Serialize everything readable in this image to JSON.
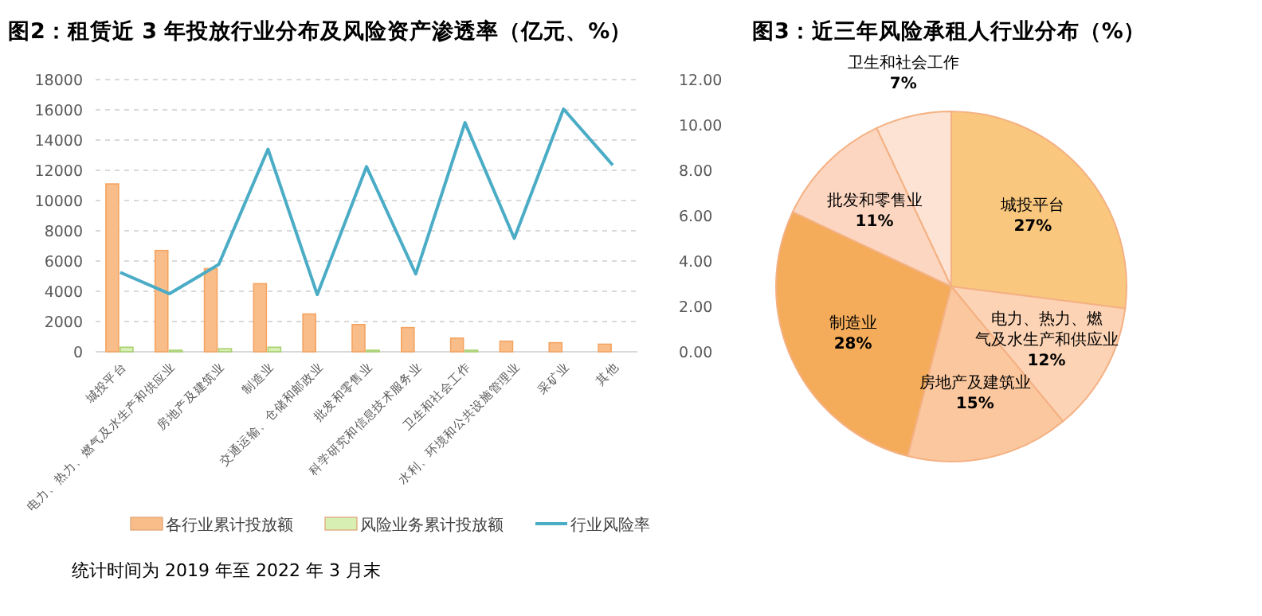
{
  "chart_data": [
    {
      "type": "bar",
      "title": "图2：租赁近 3 年投放行业分布及风险资产渗透率（亿元、%）",
      "categories": [
        "城投平台",
        "电力、热力、燃气及水生产和供应业",
        "房地产及建筑业",
        "制造业",
        "交通运输、仓储和邮政业",
        "批发和零售业",
        "科学研究和信息技术服务业",
        "卫生和社会工作",
        "水利、环境和公共设施管理业",
        "采矿业",
        "其他"
      ],
      "series": [
        {
          "name": "各行业累计投放额",
          "color": "#f9bd8a",
          "values": [
            11100,
            6700,
            5500,
            4500,
            2500,
            1800,
            1600,
            900,
            700,
            600,
            500
          ]
        },
        {
          "name": "风险业务累计投放额",
          "color": "#d8efb4",
          "values": [
            300,
            100,
            200,
            300,
            0,
            100,
            0,
            100,
            0,
            0,
            0
          ]
        },
        {
          "name": "行业风险率",
          "type": "line",
          "axis": "y2",
          "color": "#4bacc6",
          "values": [
            3.5,
            2.56,
            3.85,
            8.93,
            2.52,
            8.16,
            3.43,
            10.1,
            5.0,
            10.7,
            8.23
          ]
        }
      ],
      "ylim": [
        0,
        18000
      ],
      "yticks": [
        0,
        2000,
        4000,
        6000,
        8000,
        10000,
        12000,
        14000,
        16000,
        18000
      ],
      "y2lim": [
        0,
        12
      ],
      "y2ticks": [
        {
          "value": 0,
          "label": "0.00"
        },
        {
          "value": 2,
          "label": "2.00"
        },
        {
          "value": 4,
          "label": "4.00"
        },
        {
          "value": 6,
          "label": "6.00"
        },
        {
          "value": 8,
          "label": "8.00"
        },
        {
          "value": 10,
          "label": "10.00"
        },
        {
          "value": 12,
          "label": "12.00"
        }
      ],
      "grid": "y",
      "legend": "bottom",
      "annotations": [
        "统计时间为 2019 年至 2022 年 3 月末"
      ]
    },
    {
      "type": "pie",
      "title": "图3：近三年风险承租人行业分布（%）",
      "categories": [
        "城投平台",
        "电力、热力、燃气及水生产和供应业",
        "房地产及建筑业",
        "制造业",
        "批发和零售业",
        "卫生和社会工作"
      ],
      "values": [
        27,
        12,
        15,
        28,
        11,
        7
      ],
      "colors": [
        "#f9c77e",
        "#fcd3b4",
        "#fbc79e",
        "#f4ac5a",
        "#fcd6c0",
        "#fde3d3"
      ],
      "value_labels": [
        "27%",
        "12%",
        "15%",
        "28%",
        "11%",
        "7%"
      ]
    }
  ]
}
